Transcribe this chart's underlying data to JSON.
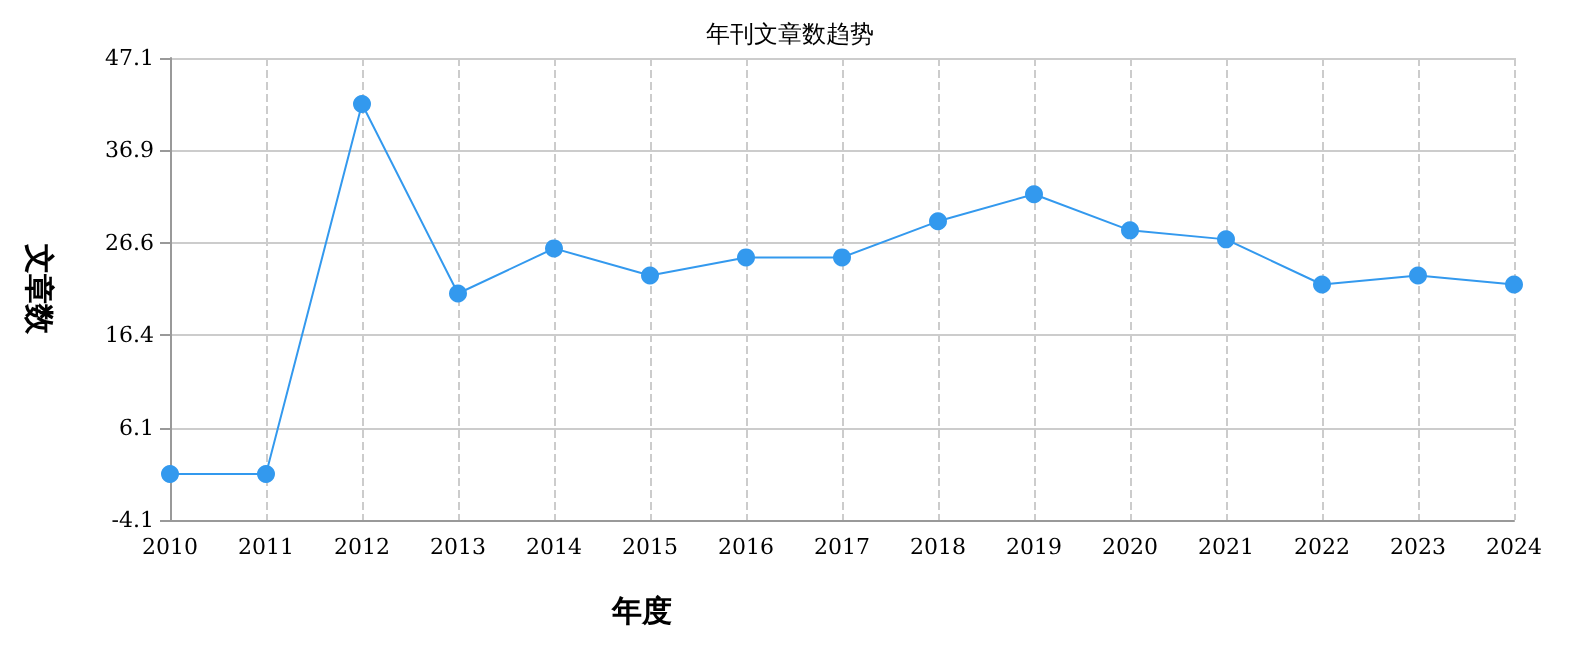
{
  "chart_data": {
    "type": "line",
    "title": "年刊文章数趋势",
    "xlabel": "年度",
    "ylabel": "文章数",
    "categories": [
      "2010",
      "2011",
      "2012",
      "2013",
      "2014",
      "2015",
      "2016",
      "2017",
      "2018",
      "2019",
      "2020",
      "2021",
      "2022",
      "2023",
      "2024"
    ],
    "series": [
      {
        "color": "#3399ee",
        "values": [
          1,
          1,
          42,
          21,
          26,
          23,
          25,
          25,
          29,
          32,
          28,
          27,
          22,
          23,
          22
        ]
      }
    ],
    "ylim": [
      -4.1,
      47.1
    ],
    "yticks": [
      -4.1,
      6.1,
      16.4,
      26.6,
      36.9,
      47.1
    ],
    "grid": true,
    "marker": "circle",
    "line_style": "solid"
  }
}
